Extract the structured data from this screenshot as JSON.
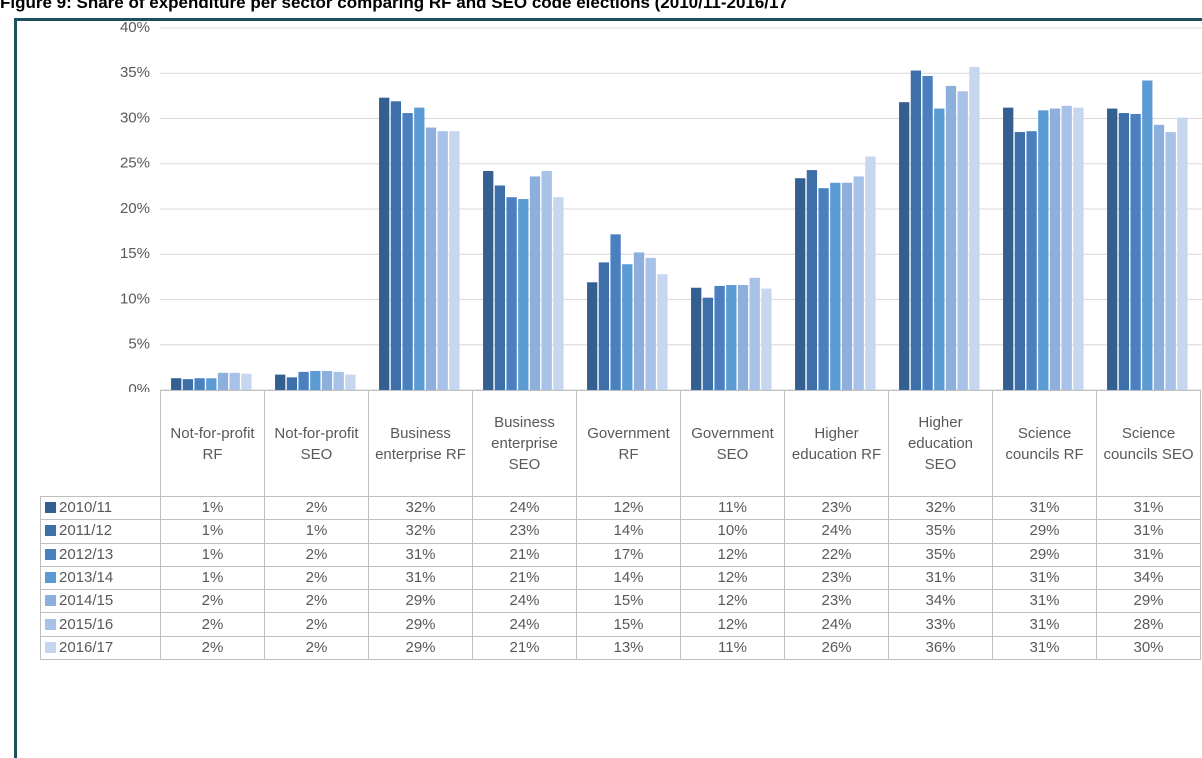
{
  "chart_data": {
    "type": "bar",
    "title": "Figure 9: Share of expenditure per sector comparing RF and SEO code elections (2010/11-2016/17",
    "categories": [
      "Not-for-profit RF",
      "Not-for-profit SEO",
      "Business enterprise RF",
      "Business enterprise SEO",
      "Government RF",
      "Government SEO",
      "Higher education RF",
      "Higher education SEO",
      "Science councils RF",
      "Science councils SEO"
    ],
    "series": [
      {
        "name": "2010/11",
        "color": "#335f91",
        "values": [
          1.3,
          1.7,
          32.3,
          24.2,
          11.9,
          11.3,
          23.4,
          31.8,
          31.2,
          31.1
        ],
        "value_labels": [
          "1%",
          "2%",
          "32%",
          "24%",
          "12%",
          "11%",
          "23%",
          "32%",
          "31%",
          "31%"
        ]
      },
      {
        "name": "2011/12",
        "color": "#3d6fa8",
        "values": [
          1.2,
          1.4,
          31.9,
          22.6,
          14.1,
          10.2,
          24.3,
          35.3,
          28.5,
          30.6
        ],
        "value_labels": [
          "1%",
          "1%",
          "32%",
          "23%",
          "14%",
          "10%",
          "24%",
          "35%",
          "29%",
          "31%"
        ]
      },
      {
        "name": "2012/13",
        "color": "#4a80c0",
        "values": [
          1.3,
          2.0,
          30.6,
          21.3,
          17.2,
          11.5,
          22.3,
          34.7,
          28.6,
          30.5
        ],
        "value_labels": [
          "1%",
          "2%",
          "31%",
          "21%",
          "17%",
          "12%",
          "22%",
          "35%",
          "29%",
          "31%"
        ]
      },
      {
        "name": "2013/14",
        "color": "#5b9bd5",
        "values": [
          1.3,
          2.1,
          31.2,
          21.1,
          13.9,
          11.6,
          22.9,
          31.1,
          30.9,
          34.2
        ],
        "value_labels": [
          "1%",
          "2%",
          "31%",
          "21%",
          "14%",
          "12%",
          "23%",
          "31%",
          "31%",
          "34%"
        ]
      },
      {
        "name": "2014/15",
        "color": "#8dafdc",
        "values": [
          1.9,
          2.1,
          29.0,
          23.6,
          15.2,
          11.6,
          22.9,
          33.6,
          31.1,
          29.3
        ],
        "value_labels": [
          "2%",
          "2%",
          "29%",
          "24%",
          "15%",
          "12%",
          "23%",
          "34%",
          "31%",
          "29%"
        ]
      },
      {
        "name": "2015/16",
        "color": "#a8c1e6",
        "values": [
          1.9,
          2.0,
          28.6,
          24.2,
          14.6,
          12.4,
          23.6,
          33.0,
          31.4,
          28.5
        ],
        "value_labels": [
          "2%",
          "2%",
          "29%",
          "24%",
          "15%",
          "12%",
          "24%",
          "33%",
          "31%",
          "28%"
        ]
      },
      {
        "name": "2016/17",
        "color": "#c6d6ef",
        "values": [
          1.8,
          1.7,
          28.6,
          21.3,
          12.8,
          11.2,
          25.8,
          35.7,
          31.2,
          30.1
        ],
        "value_labels": [
          "2%",
          "2%",
          "29%",
          "21%",
          "13%",
          "11%",
          "26%",
          "36%",
          "31%",
          "30%"
        ]
      }
    ],
    "ylim": [
      0,
      40
    ],
    "yticks": [
      {
        "value": 0,
        "label": "0%"
      },
      {
        "value": 5,
        "label": "5%"
      },
      {
        "value": 10,
        "label": "10%"
      },
      {
        "value": 15,
        "label": "15%"
      },
      {
        "value": 20,
        "label": "20%"
      },
      {
        "value": 25,
        "label": "25%"
      },
      {
        "value": 30,
        "label": "30%"
      },
      {
        "value": 35,
        "label": "35%"
      },
      {
        "value": 40,
        "label": "40%"
      }
    ],
    "grid": true
  }
}
